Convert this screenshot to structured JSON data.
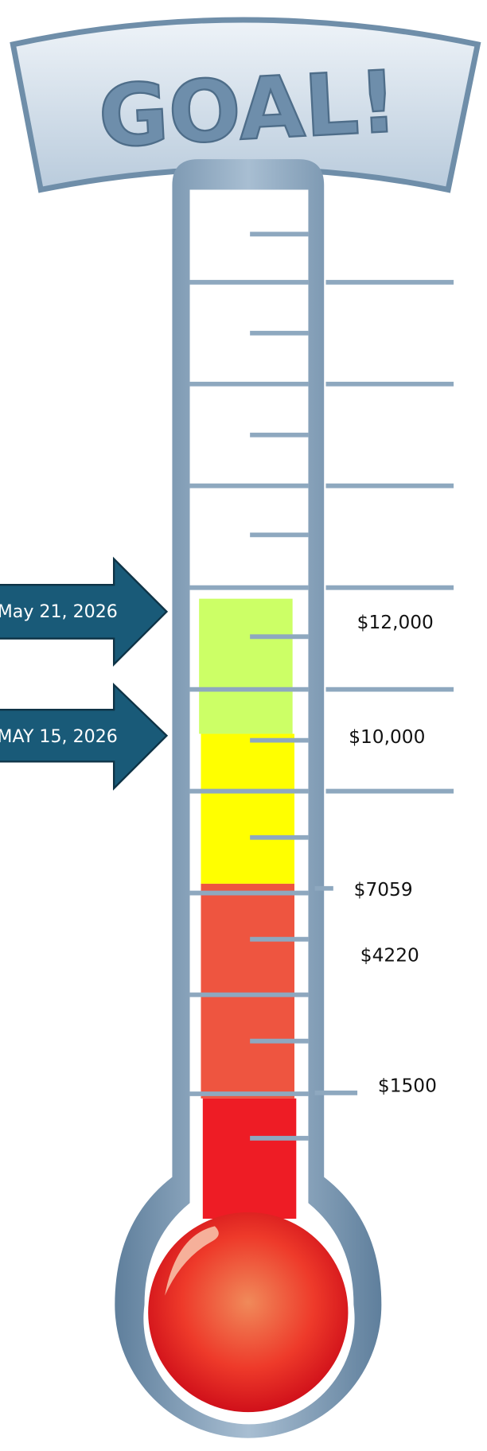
{
  "header": {
    "title": "GOAL!"
  },
  "milestones": [
    {
      "label": "May 21, 2026"
    },
    {
      "label": "MAY 15, 2026"
    }
  ],
  "levels": [
    "$12,000",
    "$10,000",
    "$7059",
    "$4220",
    "$1500"
  ]
}
